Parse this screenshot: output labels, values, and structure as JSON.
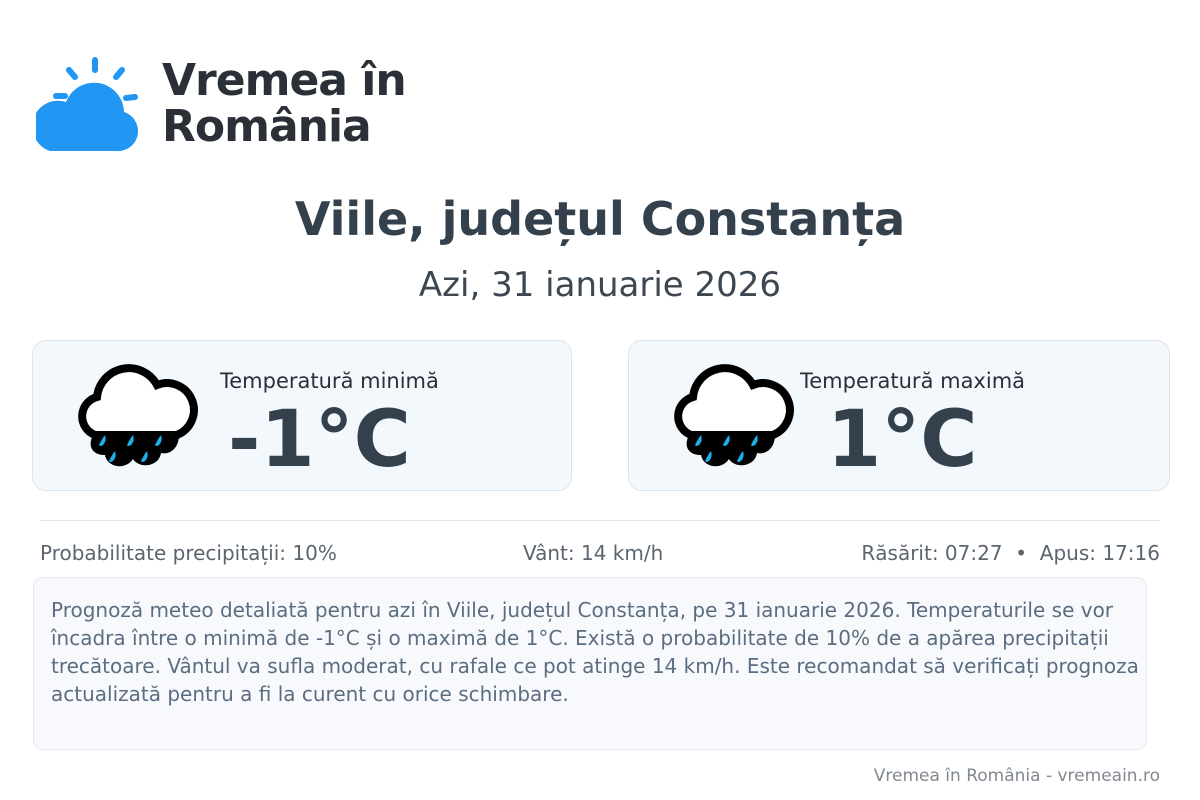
{
  "brand": {
    "name_line1": "Vremea în",
    "name_line2": "România",
    "accent": "#2196f3"
  },
  "header": {
    "title": "Viile, județul Constanța",
    "date": "Azi, 31 ianuarie 2026"
  },
  "cards": [
    {
      "label": "Temperatură minimă",
      "value": "-1°C",
      "icon": "rain-cloud-icon"
    },
    {
      "label": "Temperatură maximă",
      "value": "1°C",
      "icon": "rain-cloud-icon"
    }
  ],
  "stats": {
    "precip": "Probabilitate precipitații: 10%",
    "wind": "Vânt: 14 km/h",
    "sun": "Răsărit: 07:27  •  Apus: 17:16"
  },
  "description": "Prognoză meteo detaliată pentru azi în Viile, județul Constanța, pe 31 ianuarie 2026. Temperaturile se vor încadra între o minimă de -1°C și o maximă de 1°C. Există o probabilitate de 10% de a apărea precipitații trecătoare. Vântul va sufla moderat, cu rafale ce pot atinge 14 km/h. Este recomandat să verificați prognoza actualizată pentru a fi la curent cu orice schimbare.",
  "footer": "Vremea în România - vremeain.ro"
}
